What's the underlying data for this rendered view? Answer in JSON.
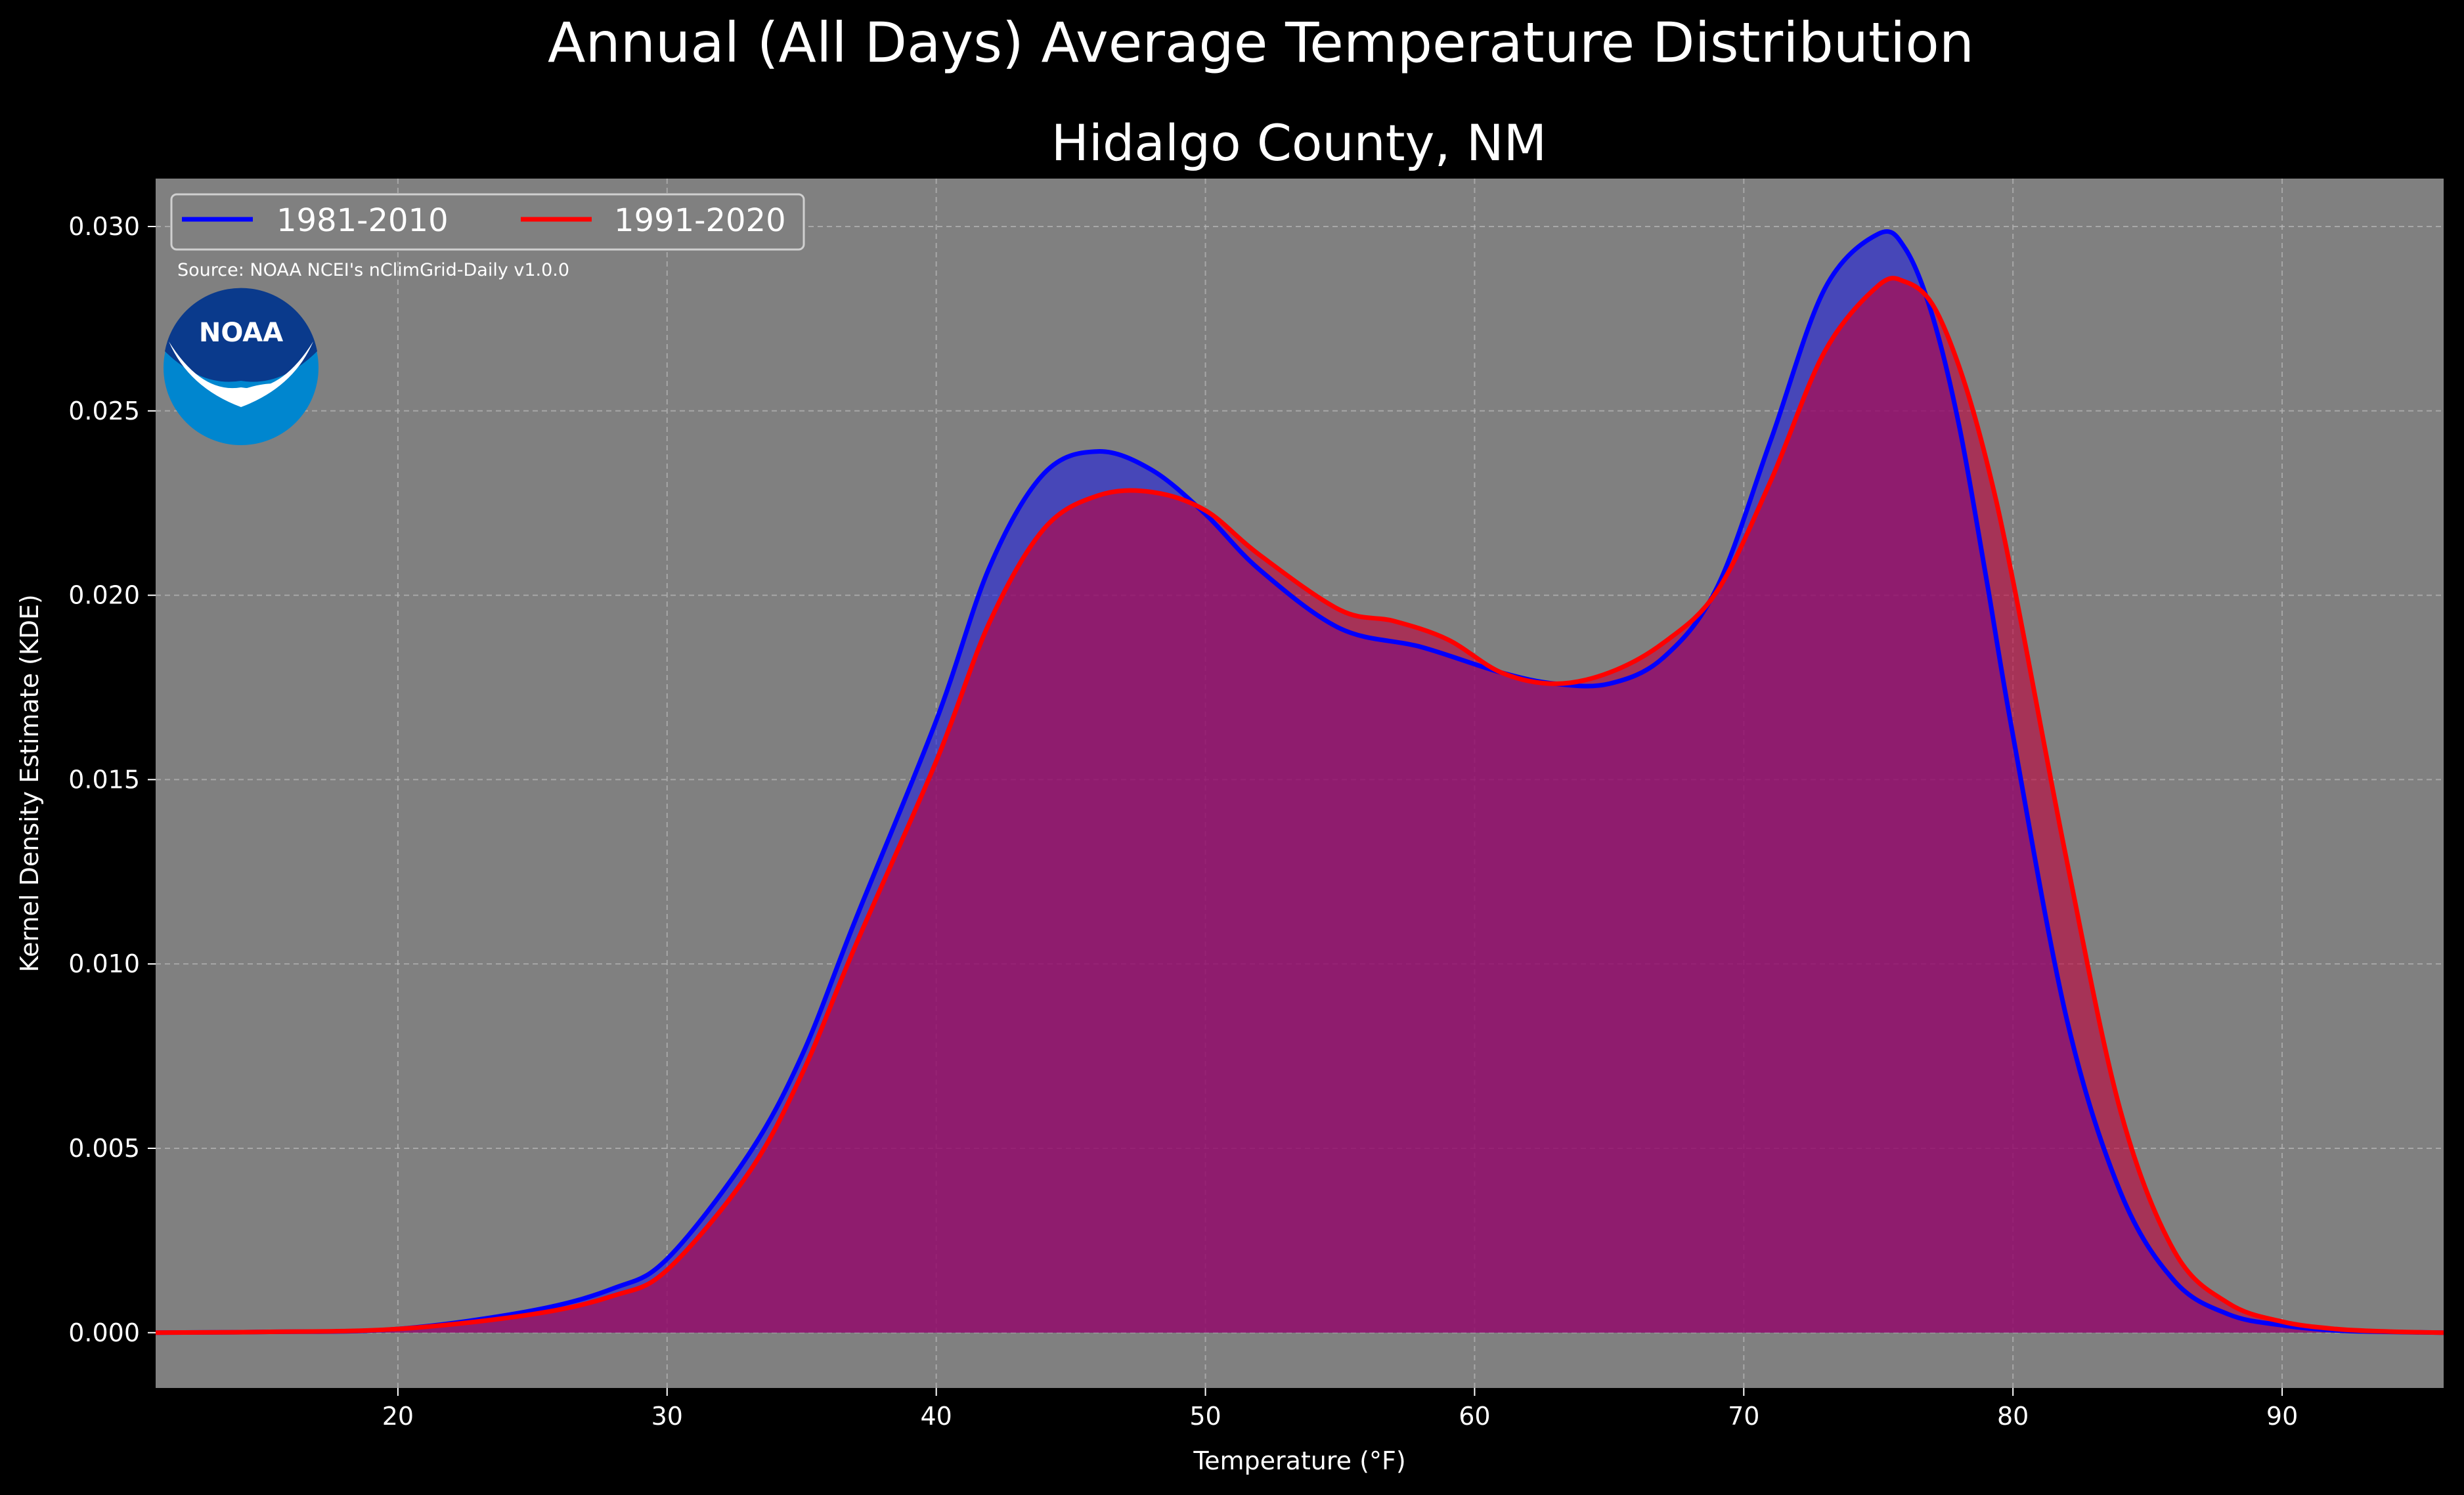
{
  "colors": {
    "background": "#000000",
    "plot_bg": "#808080",
    "grid": "#b8b8b8",
    "series_1981": "#0000ff",
    "series_1991": "#ff0000",
    "fill_1981": "#2222dd",
    "fill_1991": "#c0003c",
    "noaa_dark": "#0a3a8c",
    "noaa_light": "#0086cf"
  },
  "logo": {
    "icon": "noaa-logo-icon",
    "text": "NOAA"
  },
  "chart_data": {
    "type": "area",
    "suptitle": "Annual (All Days) Average Temperature Distribution",
    "title": "Hidalgo County, NM",
    "xlabel": "Temperature (°F)",
    "ylabel": "Kernel Density Estimate (KDE)",
    "source": "Source: NOAA NCEI's nClimGrid-Daily v1.0.0",
    "xlim": [
      11,
      96
    ],
    "ylim": [
      -0.0015,
      0.0313
    ],
    "xticks": [
      20,
      30,
      40,
      50,
      60,
      70,
      80,
      90
    ],
    "yticks": [
      0.0,
      0.005,
      0.01,
      0.015,
      0.02,
      0.025,
      0.03
    ],
    "ytick_labels": [
      "0.000",
      "0.005",
      "0.010",
      "0.015",
      "0.020",
      "0.025",
      "0.030"
    ],
    "grid": true,
    "legend_position": "upper-left",
    "series": [
      {
        "name": "1981-2010",
        "color": "#0000ff",
        "x": [
          11,
          15,
          20,
          25,
          28,
          30,
          33,
          35,
          37,
          40,
          42,
          44,
          46,
          48,
          50,
          52,
          55,
          58,
          61,
          63,
          65,
          67,
          69,
          71,
          73,
          75,
          76,
          77,
          78,
          79,
          80,
          82,
          84,
          86,
          88,
          90,
          92,
          94,
          96
        ],
        "y": [
          0.0,
          2e-05,
          0.0001,
          0.0006,
          0.0012,
          0.002,
          0.0048,
          0.0075,
          0.0112,
          0.0166,
          0.0208,
          0.0233,
          0.0239,
          0.0234,
          0.0222,
          0.0207,
          0.0191,
          0.0186,
          0.0179,
          0.0176,
          0.0176,
          0.0183,
          0.0202,
          0.0242,
          0.0283,
          0.0298,
          0.0294,
          0.0276,
          0.0246,
          0.0205,
          0.0162,
          0.0085,
          0.0038,
          0.0014,
          0.0005,
          0.0002,
          6e-05,
          2e-05,
          0.0
        ]
      },
      {
        "name": "1991-2020",
        "color": "#ff0000",
        "x": [
          11,
          15,
          20,
          25,
          28,
          30,
          33,
          35,
          37,
          40,
          42,
          44,
          46,
          48,
          50,
          52,
          55,
          57,
          59,
          61,
          63,
          65,
          67,
          69,
          71,
          73,
          75,
          76,
          77,
          78,
          79,
          80,
          82,
          84,
          86,
          88,
          90,
          92,
          94,
          96
        ],
        "y": [
          0.0,
          2e-05,
          0.0001,
          0.0005,
          0.001,
          0.0017,
          0.0043,
          0.007,
          0.0105,
          0.0155,
          0.0193,
          0.0218,
          0.0227,
          0.0228,
          0.0223,
          0.0211,
          0.0196,
          0.0193,
          0.0188,
          0.0179,
          0.0176,
          0.0179,
          0.0187,
          0.0201,
          0.0231,
          0.0266,
          0.0284,
          0.0285,
          0.0279,
          0.0262,
          0.0237,
          0.0204,
          0.0128,
          0.006,
          0.0022,
          0.0008,
          0.0003,
          0.0001,
          3e-05,
          0.0
        ]
      }
    ]
  }
}
